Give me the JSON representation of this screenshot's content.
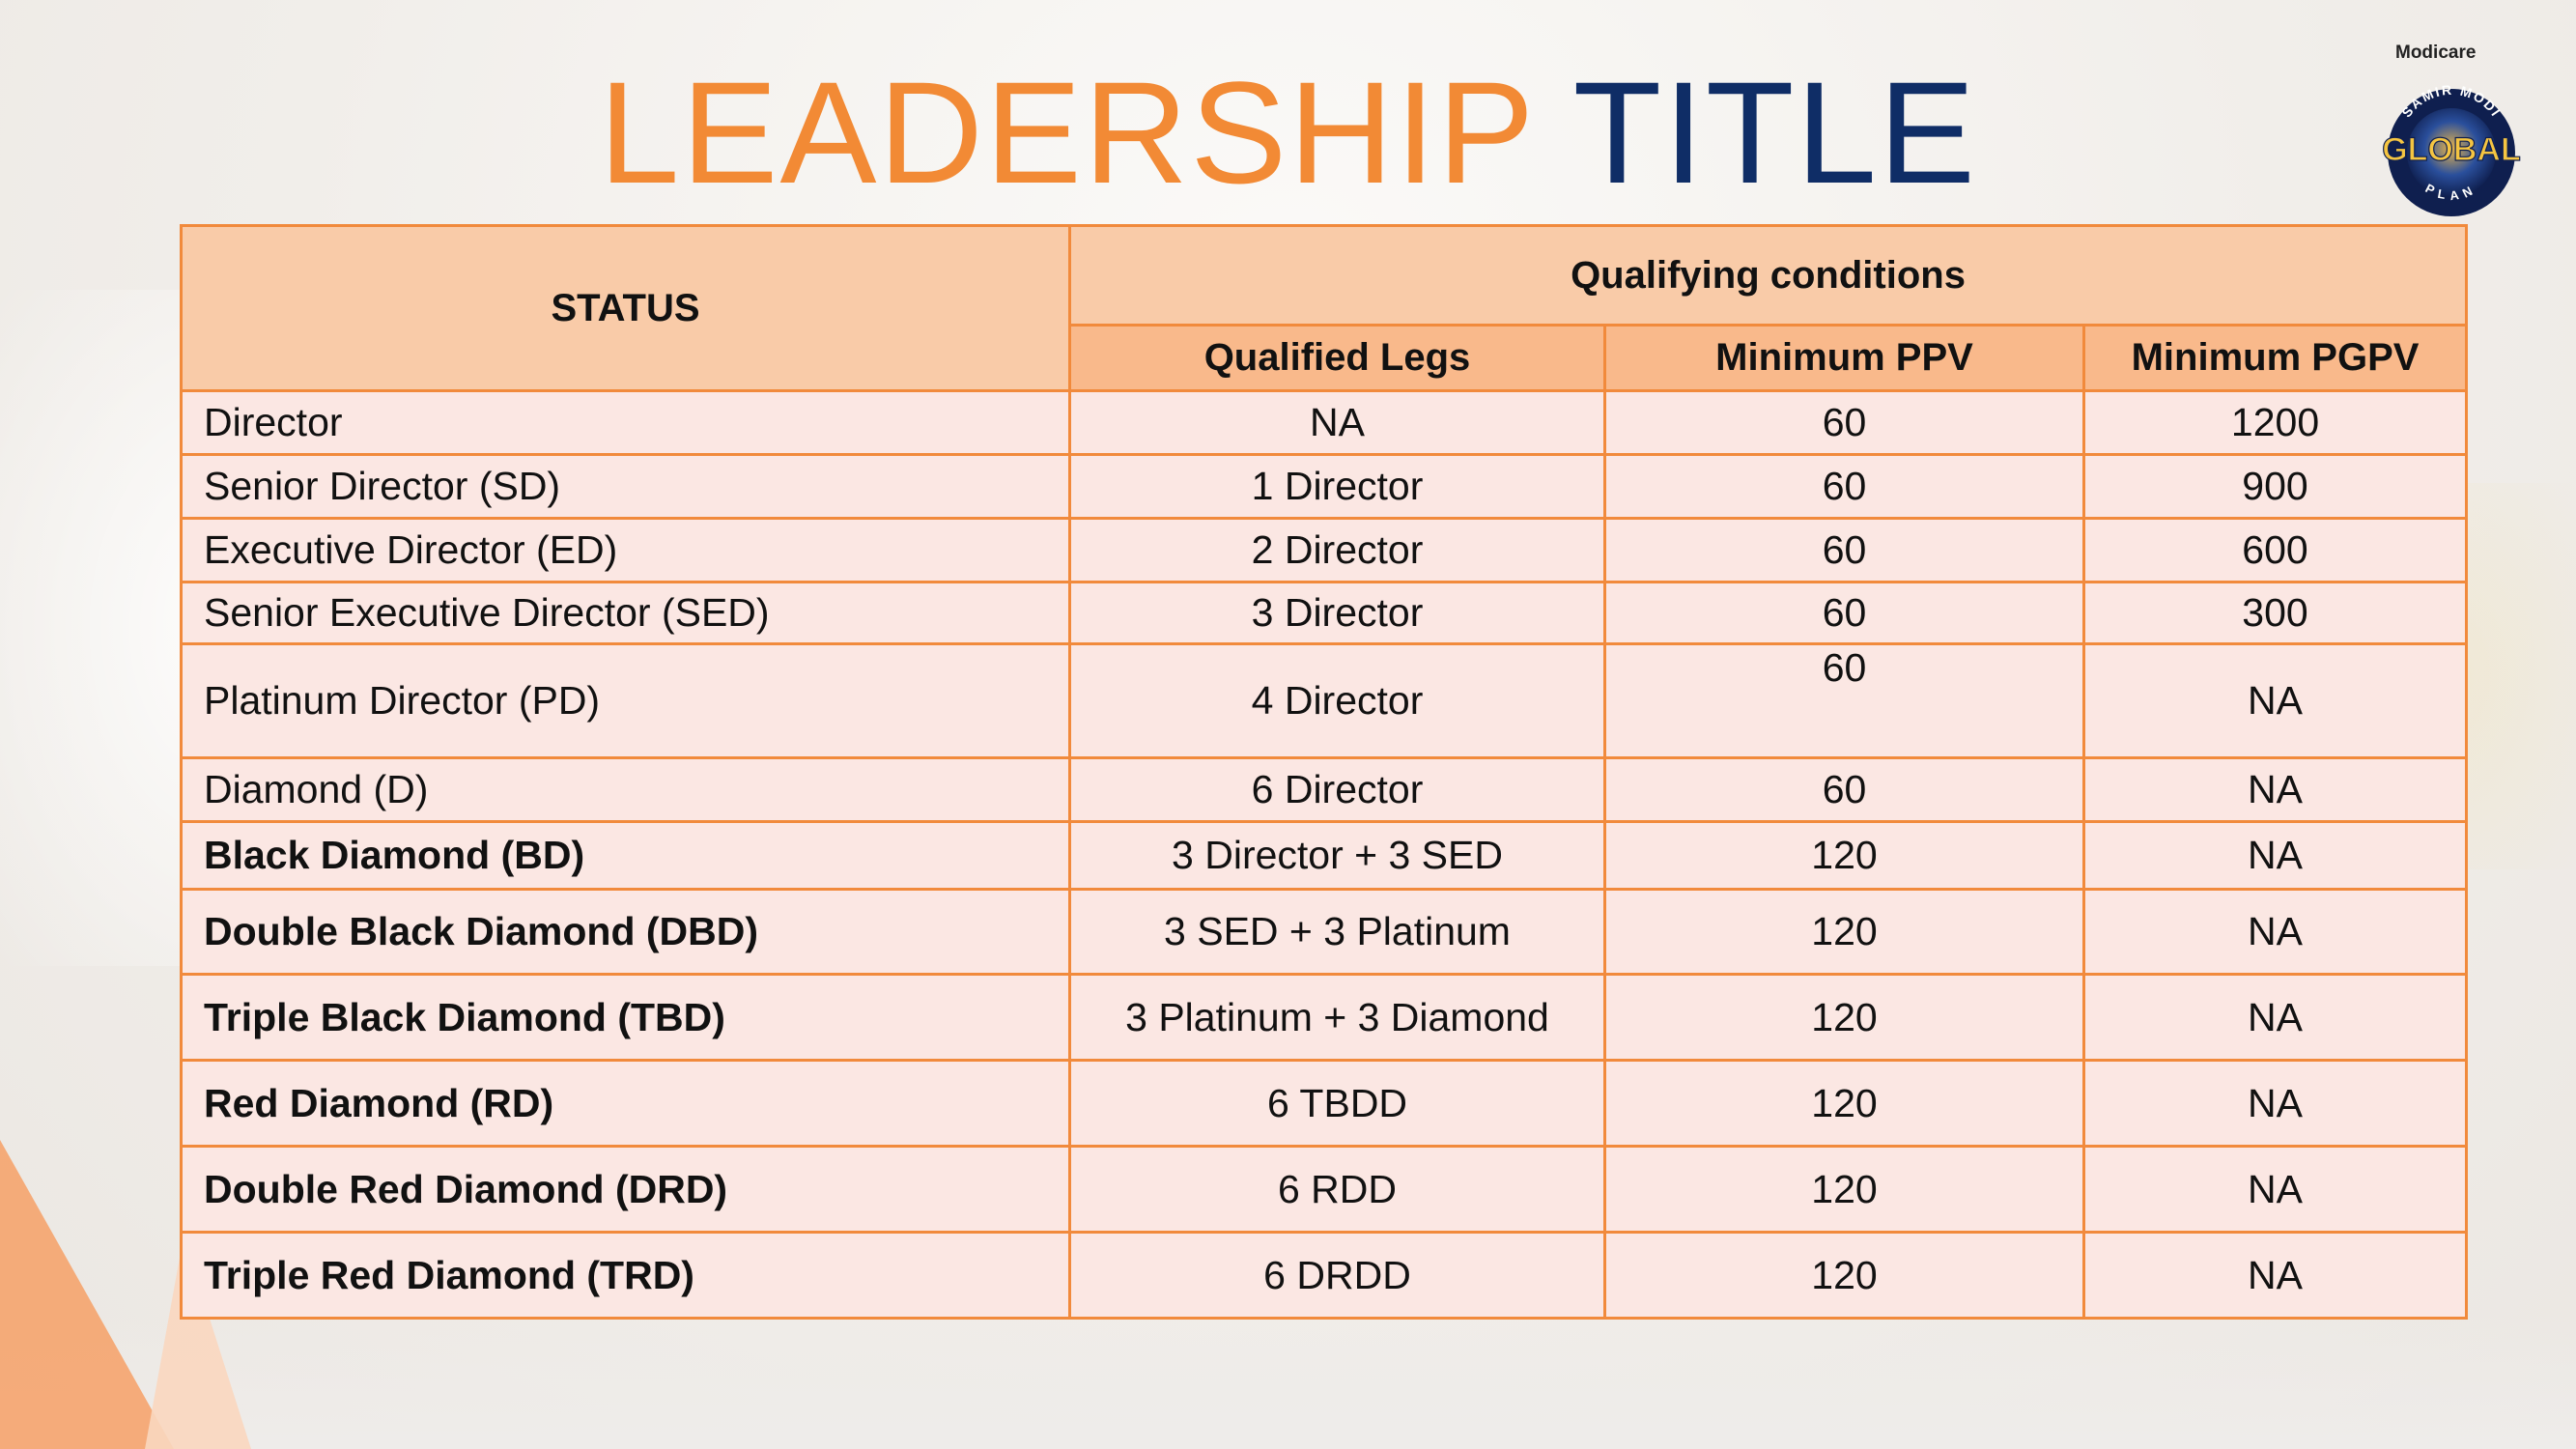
{
  "title": {
    "word1": "LEADERSHIP",
    "word2": "TITLE"
  },
  "logo": {
    "brand": "Modicare",
    "arc": "SAMIR MODI",
    "main": "GLOBAL",
    "sub": "PLAN"
  },
  "table": {
    "status_header": "STATUS",
    "group_header": "Qualifying conditions",
    "columns": [
      "Qualified Legs",
      "Minimum PPV",
      "Minimum PGPV"
    ],
    "rows": [
      {
        "status": "Director",
        "legs": "NA",
        "ppv": "60",
        "pgpv": "1200"
      },
      {
        "status": "Senior Director (SD)",
        "legs": "1 Director",
        "ppv": "60",
        "pgpv": "900"
      },
      {
        "status": "Executive Director (ED)",
        "legs": "2 Director",
        "ppv": "60",
        "pgpv": "600"
      },
      {
        "status": "Senior Executive Director (SED)",
        "legs": "3 Director",
        "ppv": "60",
        "pgpv": "300"
      },
      {
        "status": "Platinum Director (PD)",
        "legs": "4 Director",
        "ppv": "60",
        "pgpv": "NA"
      },
      {
        "status": "Diamond (D)",
        "legs": "6 Director",
        "ppv": "60",
        "pgpv": "NA"
      },
      {
        "status": "Black Diamond (BD)",
        "legs": "3 Director + 3 SED",
        "ppv": "120",
        "pgpv": "NA"
      },
      {
        "status": "Double Black Diamond  (DBD)",
        "legs": "3 SED + 3 Platinum",
        "ppv": "120",
        "pgpv": "NA"
      },
      {
        "status": "Triple Black Diamond (TBD)",
        "legs": "3 Platinum + 3 Diamond",
        "ppv": "120",
        "pgpv": "NA"
      },
      {
        "status": "Red Diamond (RD)",
        "legs": "6 TBDD",
        "ppv": "120",
        "pgpv": "NA"
      },
      {
        "status": "Double Red Diamond (DRD)",
        "legs": "6 RDD",
        "ppv": "120",
        "pgpv": "NA"
      },
      {
        "status": "Triple Red Diamond (TRD)",
        "legs": "6 DRDD",
        "ppv": "120",
        "pgpv": "NA"
      }
    ]
  },
  "colors": {
    "orange": "#f28a35",
    "navy": "#0f2d66",
    "header_bg": "#f9cba8",
    "subheader_bg": "#f9b98b",
    "row_bg": "#fbe7e3",
    "border": "#f18a3c"
  }
}
